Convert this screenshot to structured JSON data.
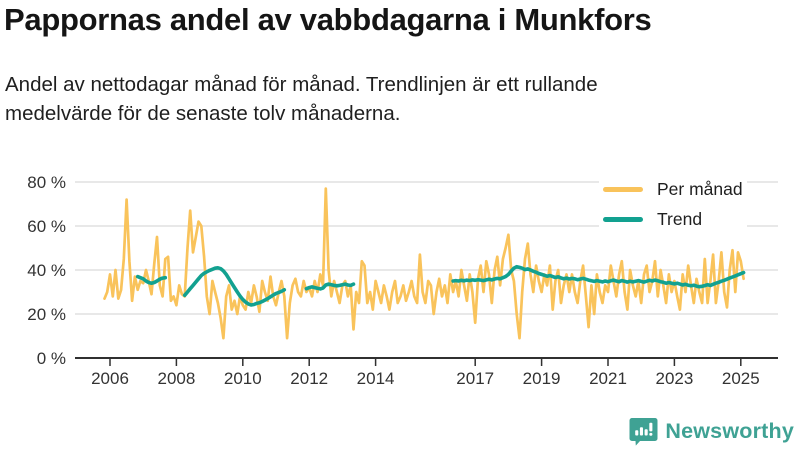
{
  "header": {
    "title": "Pappornas andel av vabbdagarna i Munkfors",
    "subtitle_lines": [
      "Andel av nettodagar månad för månad. Trendlinjen är ett rullande",
      "medelvärde för de senaste tolv månaderna."
    ]
  },
  "legend": {
    "items": [
      {
        "label": "Per månad",
        "color": "#F9C35B"
      },
      {
        "label": "Trend",
        "color": "#12A190"
      }
    ]
  },
  "footer": {
    "brand": "Newsworthy",
    "brand_color": "#3FA294",
    "logo_icon": "bar-chart-speech-bubble-icon"
  },
  "colors": {
    "background": "#ffffff",
    "grid": "#dbdbdb",
    "axis": "#303030",
    "tick_text": "#333333",
    "per_month_line": "#F9C35B",
    "trend_line": "#12A190"
  },
  "chart_data": {
    "type": "line",
    "title": "Pappornas andel av vabbdagarna i Munkfors",
    "xlabel": "",
    "ylabel": "",
    "ylim": [
      0,
      80
    ],
    "xlim": [
      2004.95,
      2026.1
    ],
    "yticks": [
      0,
      20,
      40,
      60,
      80
    ],
    "ytick_suffix": " %",
    "xticks": [
      2006,
      2008,
      2010,
      2012,
      2014,
      2017,
      2019,
      2021,
      2023,
      2025
    ],
    "grid": "horizontal",
    "legend_position": "top-right",
    "unit": "percent of net VAB days taken by fathers, per month",
    "series": [
      {
        "name": "Per månad",
        "role": "monthly",
        "color": "#F9C35B",
        "start": "2005-11",
        "values": [
          27,
          30,
          38,
          28,
          40,
          27,
          31,
          45,
          72,
          44,
          26,
          37,
          31,
          35,
          34,
          40,
          35,
          29,
          43,
          55,
          33,
          28,
          45,
          46,
          26,
          28,
          24,
          33,
          29,
          28,
          50,
          67,
          48,
          55,
          62,
          60,
          46,
          28,
          20,
          35,
          30,
          25,
          18,
          9,
          28,
          33,
          22,
          26,
          20,
          28,
          24,
          22,
          30,
          25,
          33,
          28,
          21,
          35,
          30,
          26,
          37,
          28,
          24,
          30,
          35,
          28,
          9,
          25,
          33,
          36,
          30,
          28,
          35,
          30,
          32,
          28,
          35,
          30,
          38,
          33,
          77,
          40,
          28,
          35,
          30,
          25,
          33,
          35,
          28,
          33,
          13,
          30,
          25,
          44,
          42,
          25,
          30,
          22,
          35,
          30,
          25,
          33,
          28,
          22,
          30,
          35,
          25,
          28,
          33,
          26,
          30,
          35,
          28,
          25,
          47,
          30,
          25,
          35,
          33,
          20,
          30,
          36,
          28,
          33,
          25,
          38,
          30,
          35,
          28,
          40,
          33,
          26,
          38,
          30,
          16,
          36,
          42,
          30,
          44,
          38,
          25,
          40,
          46,
          33,
          45,
          50,
          56,
          40,
          35,
          20,
          9,
          30,
          45,
          52,
          38,
          30,
          42,
          35,
          30,
          38,
          33,
          42,
          22,
          35,
          40,
          25,
          33,
          38,
          30,
          38,
          30,
          25,
          35,
          42,
          28,
          14,
          33,
          20,
          38,
          30,
          25,
          33,
          30,
          42,
          35,
          28,
          38,
          44,
          30,
          22,
          40,
          33,
          28,
          35,
          25,
          38,
          42,
          30,
          35,
          44,
          28,
          40,
          33,
          25,
          38,
          30,
          35,
          28,
          22,
          38,
          30,
          42,
          33,
          25,
          36,
          30,
          25,
          45,
          25,
          35,
          47,
          25,
          35,
          48,
          30,
          23,
          40,
          49,
          30,
          48,
          44,
          36
        ]
      },
      {
        "name": "Trend",
        "role": "rolling-12-month-mean",
        "color": "#12A190",
        "segments": [
          {
            "start": "2006-11",
            "values": [
              37,
              36.5,
              36,
              35,
              34.3,
              34,
              34.3,
              35,
              35.8,
              36.3,
              36.5
            ]
          },
          {
            "start": "2008-04",
            "values": [
              28.5,
              30,
              31.5,
              33,
              34.5,
              36,
              37.5,
              38.5,
              39.2,
              39.8,
              40.3,
              40.8,
              41,
              40.6,
              39.6,
              38,
              36,
              34,
              32,
              30,
              28.2,
              26.6,
              25.4,
              24.6,
              24.1,
              24.3,
              24.8,
              25.1,
              25.7,
              26.3,
              27,
              27.8,
              28.6,
              29.3,
              29.8,
              30.3,
              31
            ]
          },
          {
            "start": "2011-12",
            "values": [
              31.5,
              32,
              32.3,
              32,
              31.7,
              31.4,
              31.8,
              33.2,
              33.6,
              33.3,
              33,
              32.8,
              33,
              33.3,
              33.6,
              33.2,
              33,
              33.6
            ]
          },
          {
            "start": "2016-05",
            "values": [
              35,
              35.2,
              35,
              35.3,
              35.1,
              35.4,
              35.2,
              35.5,
              35.3,
              35.6,
              35.4,
              35.2,
              35.5,
              35.8,
              35.5,
              35.9,
              36.2,
              36,
              36.5,
              37,
              38,
              39.5,
              40.8,
              41.5,
              41.2,
              40.8,
              40.2,
              40.5,
              40,
              39.4,
              39,
              38.4,
              38,
              37.6,
              37.2,
              37.5,
              37,
              36.6,
              36.9,
              36.4,
              36,
              36.3,
              35.9,
              36.2,
              36,
              35.6,
              35.9,
              36.2,
              35.8,
              35.4,
              35.1,
              34.8,
              35.2,
              34.9,
              34.6,
              35,
              34.7,
              35.1,
              35.4,
              35,
              34.7,
              35.2,
              34.9,
              34.5,
              34.9,
              34.6,
              34.9,
              35.2,
              34.8,
              34.5,
              34.9,
              35.3,
              35,
              35.4,
              35.1,
              34.7,
              34.4,
              34,
              34.3,
              34,
              33.7,
              34,
              33.6,
              33.2,
              33.5,
              33.1,
              32.8,
              33.1,
              32.7,
              32.4,
              32.6,
              32.9,
              33.3,
              33,
              33.5,
              34,
              34.4,
              34.9,
              35.3,
              35.8,
              36.3,
              36.8,
              37.3,
              37.8,
              38.3,
              38.8
            ]
          }
        ]
      }
    ]
  }
}
